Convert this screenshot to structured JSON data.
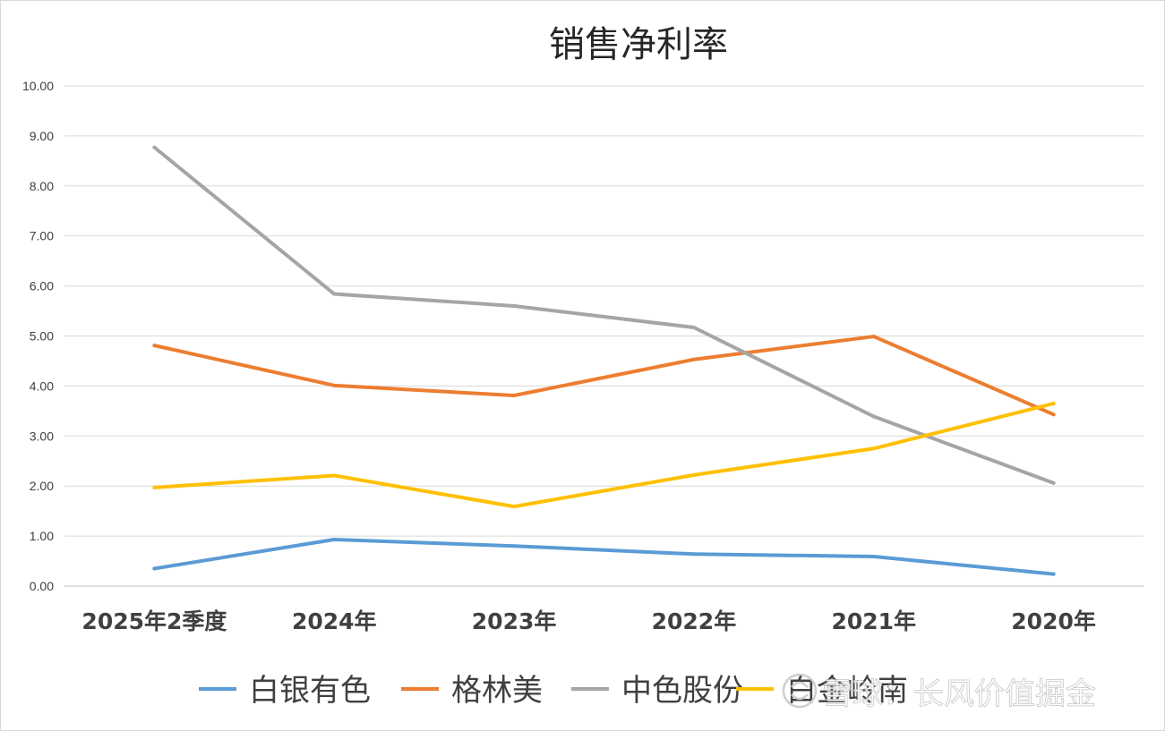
{
  "chart_data": {
    "type": "line",
    "title": "销售净利率",
    "categories": [
      "2025年2季度",
      "2024年",
      "2023年",
      "2022年",
      "2021年",
      "2020年"
    ],
    "ylim": [
      0,
      10
    ],
    "yticks": [
      "0.00",
      "1.00",
      "2.00",
      "3.00",
      "4.00",
      "5.00",
      "6.00",
      "7.00",
      "8.00",
      "9.00",
      "10.00"
    ],
    "grid": true,
    "legend_position": "bottom",
    "series": [
      {
        "name": "白银有色",
        "color": "#5B9BD5",
        "values": [
          0.35,
          0.93,
          0.8,
          0.64,
          0.59,
          0.24
        ]
      },
      {
        "name": "格林美",
        "color": "#ED7D31",
        "values": [
          4.81,
          4.01,
          3.81,
          4.53,
          4.99,
          3.43
        ]
      },
      {
        "name": "中色股份",
        "color": "#A5A5A5",
        "values": [
          8.77,
          5.84,
          5.6,
          5.17,
          3.39,
          2.06
        ]
      },
      {
        "name": "白金岭南",
        "color": "#FFC000",
        "values": [
          1.97,
          2.21,
          1.59,
          2.22,
          2.75,
          3.65
        ]
      }
    ]
  },
  "watermark": {
    "text": "雪球：长风价值掘金",
    "icon": "snowball-logo-icon"
  }
}
